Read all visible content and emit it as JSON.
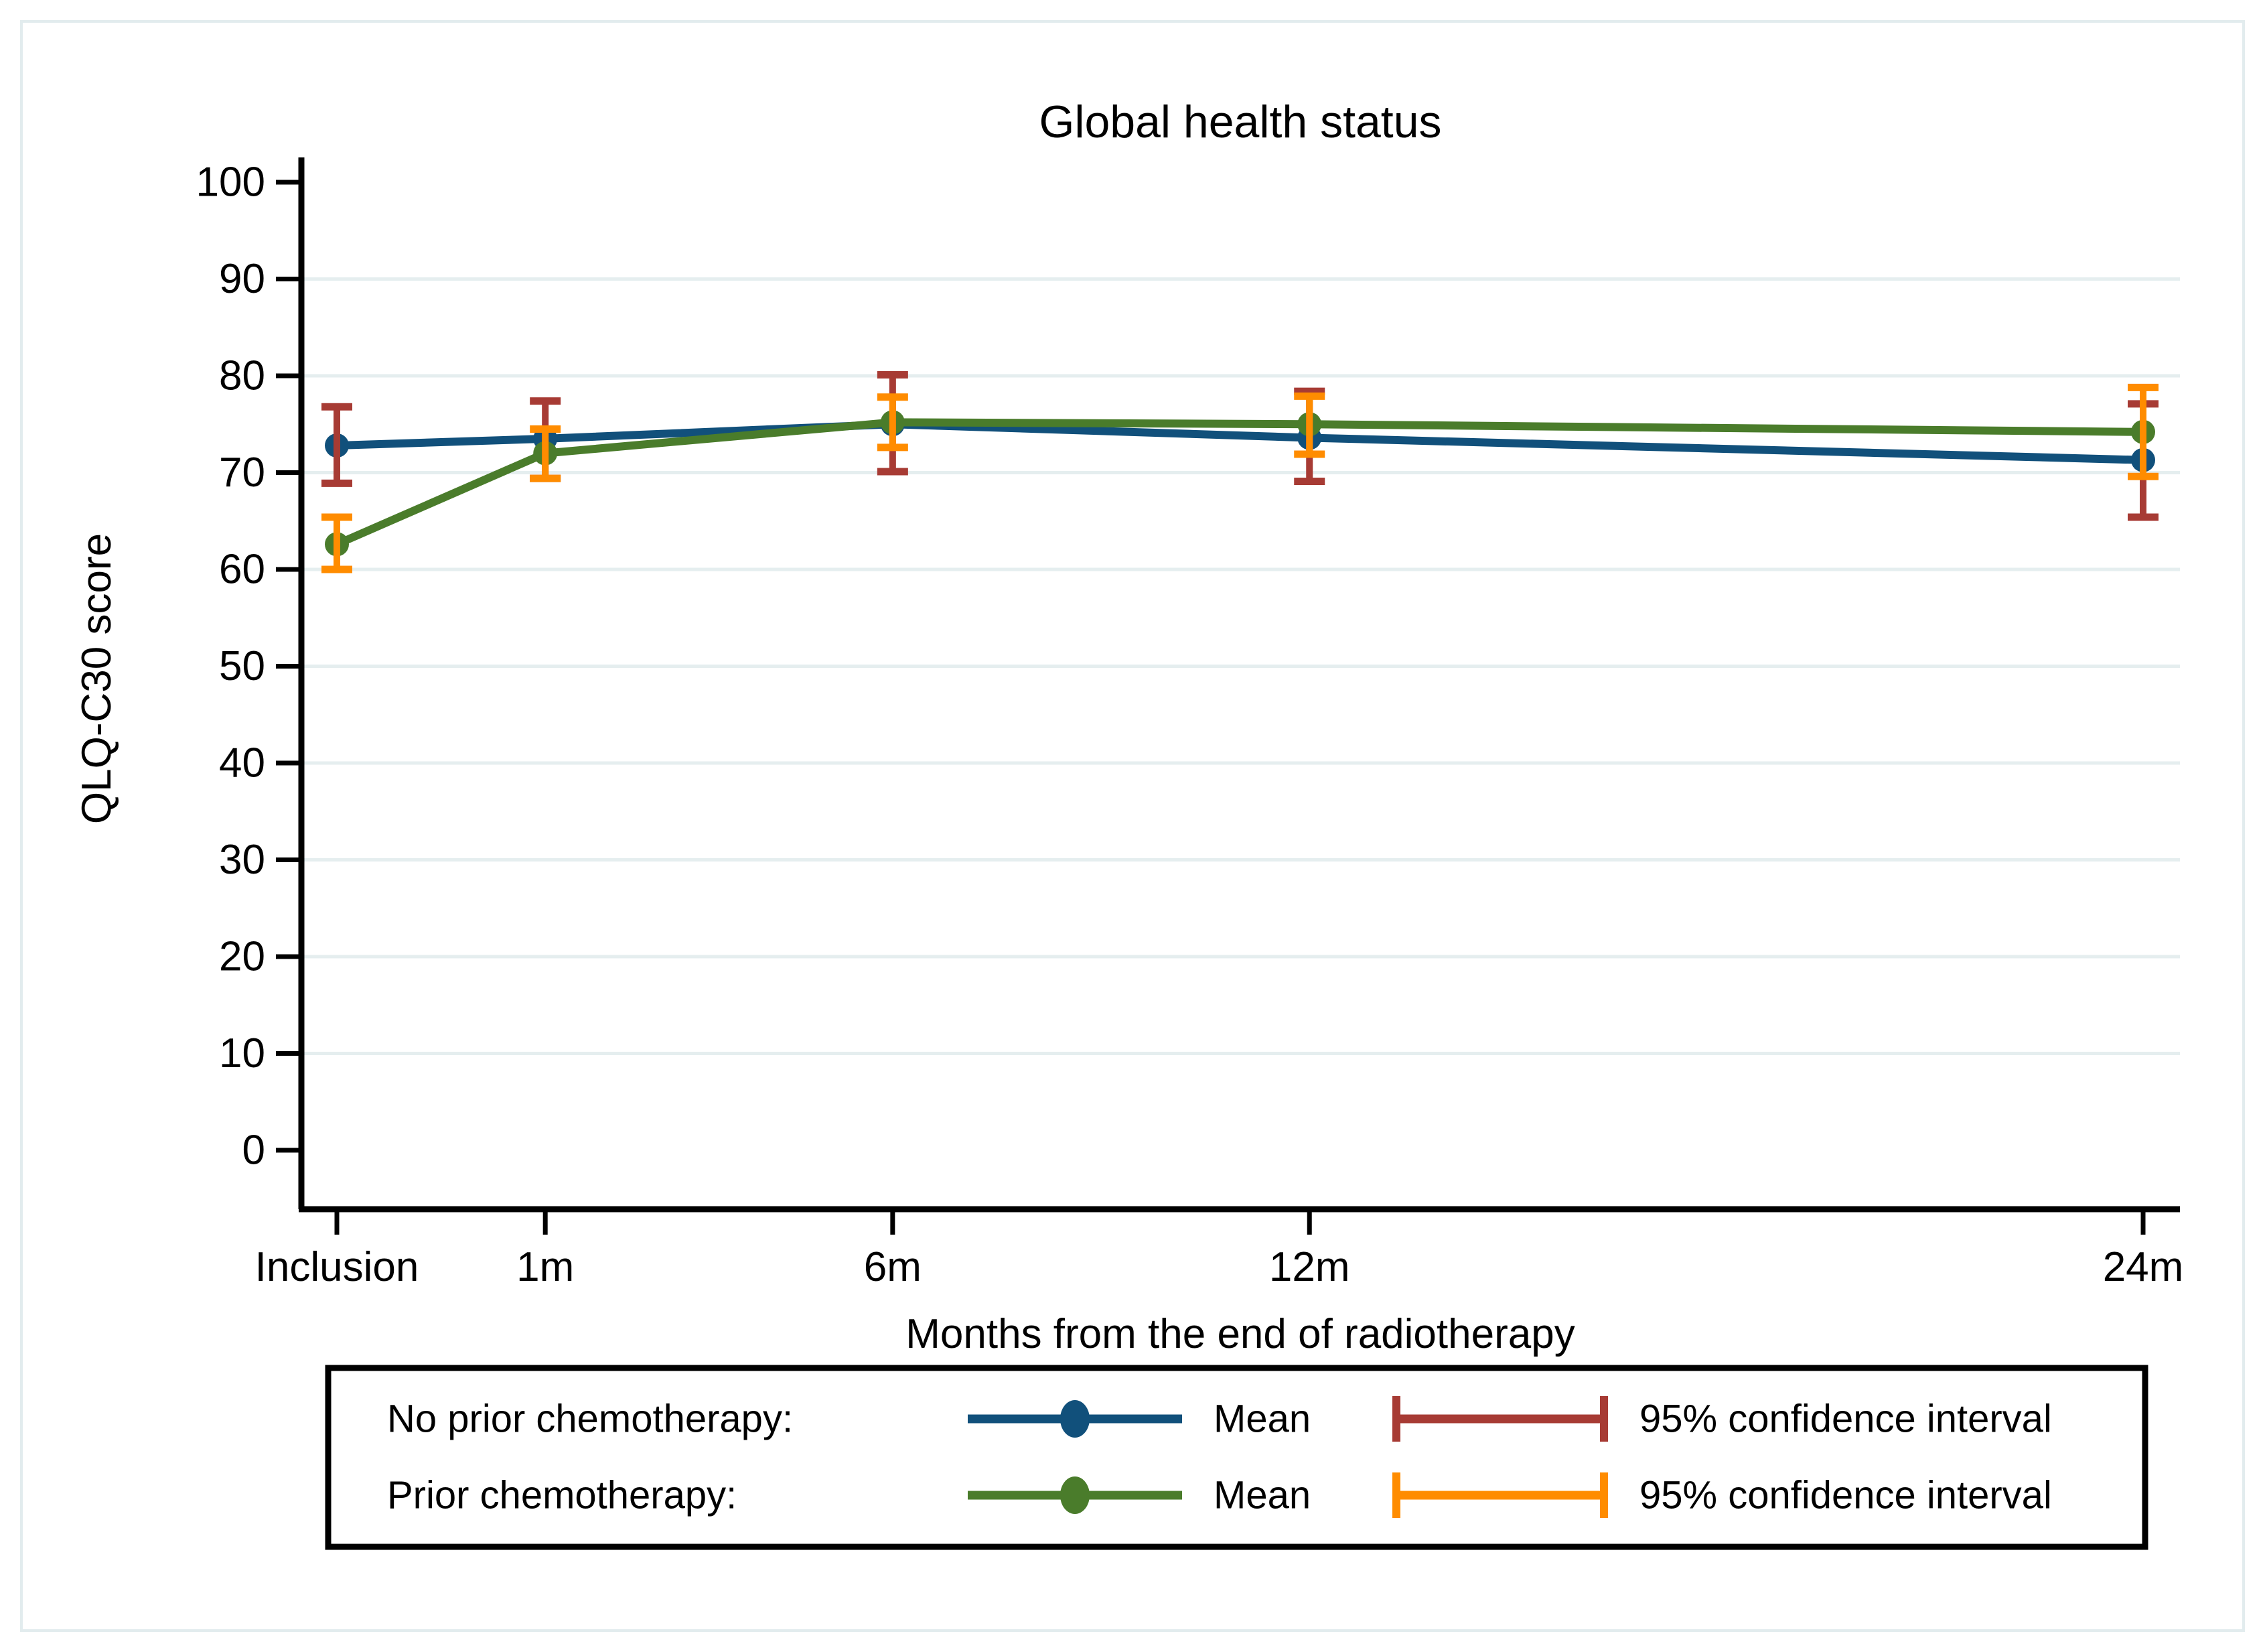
{
  "chart_data": {
    "type": "line",
    "title": "Global health status",
    "title_color": "#1e3a66",
    "xlabel": "Months from the end of radiotherapy",
    "ylabel": "QLQ-C30 score",
    "ylim": [
      0,
      100
    ],
    "yticks": [
      0,
      10,
      20,
      30,
      40,
      50,
      60,
      70,
      80,
      90,
      100
    ],
    "x_categories": [
      "Inclusion",
      "1m",
      "6m",
      "12m",
      "24m"
    ],
    "x_months": [
      -2,
      1,
      6,
      12,
      24
    ],
    "grid": "horizontal",
    "grid_color": "#e5eeef",
    "axis_color": "#000000",
    "legend_position": "bottom-box",
    "series": [
      {
        "name": "No prior chemotherapy",
        "marker": "circle",
        "color": "#11507b",
        "ci_color": "#a73b34",
        "means": [
          72.8,
          73.5,
          75.0,
          73.6,
          71.3
        ],
        "ci_low": [
          68.9,
          69.4,
          70.1,
          69.1,
          65.4
        ],
        "ci_high": [
          76.8,
          77.4,
          80.1,
          78.4,
          77.1
        ]
      },
      {
        "name": "Prior chemotherapy",
        "marker": "circle",
        "color": "#4a7c2b",
        "ci_color": "#ff8c00",
        "means": [
          62.6,
          72.0,
          75.2,
          75.0,
          74.2
        ],
        "ci_low": [
          60.0,
          69.4,
          72.6,
          71.9,
          69.6
        ],
        "ci_high": [
          65.4,
          74.5,
          77.8,
          77.9,
          78.8
        ]
      }
    ]
  },
  "legend": {
    "rows": [
      {
        "group_label": "No prior chemotherapy:",
        "mean_label": "Mean",
        "ci_label": "95% confidence interval"
      },
      {
        "group_label": "Prior chemotherapy:",
        "mean_label": "Mean",
        "ci_label": "95% confidence interval"
      }
    ]
  }
}
